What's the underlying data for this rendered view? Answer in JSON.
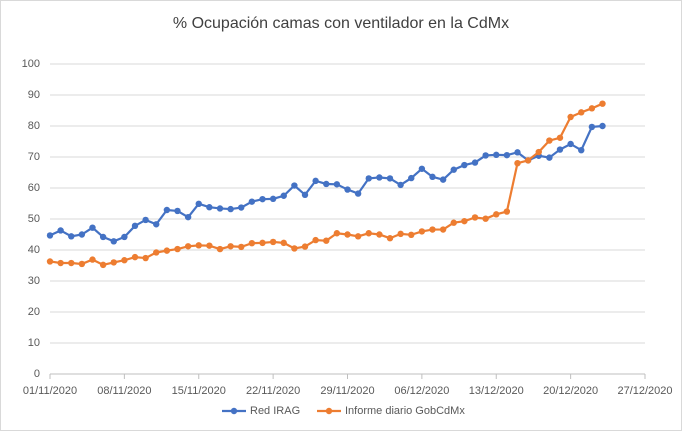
{
  "chart_data": {
    "type": "line",
    "title": "% Ocupación camas con ventilador en la CdMx",
    "x": [
      "01/11/2020",
      "02/11/2020",
      "03/11/2020",
      "04/11/2020",
      "05/11/2020",
      "06/11/2020",
      "07/11/2020",
      "08/11/2020",
      "09/11/2020",
      "10/11/2020",
      "11/11/2020",
      "12/11/2020",
      "13/11/2020",
      "14/11/2020",
      "15/11/2020",
      "16/11/2020",
      "17/11/2020",
      "18/11/2020",
      "19/11/2020",
      "20/11/2020",
      "21/11/2020",
      "22/11/2020",
      "23/11/2020",
      "24/11/2020",
      "25/11/2020",
      "26/11/2020",
      "27/11/2020",
      "28/11/2020",
      "29/11/2020",
      "30/11/2020",
      "01/12/2020",
      "02/12/2020",
      "03/12/2020",
      "04/12/2020",
      "05/12/2020",
      "06/12/2020",
      "07/12/2020",
      "08/12/2020",
      "09/12/2020",
      "10/12/2020",
      "11/12/2020",
      "12/12/2020",
      "13/12/2020",
      "14/12/2020",
      "15/12/2020",
      "16/12/2020",
      "17/12/2020",
      "18/12/2020",
      "19/12/2020",
      "20/12/2020",
      "21/12/2020",
      "22/12/2020",
      "23/12/2020"
    ],
    "series": [
      {
        "name": "Red IRAG",
        "color": "#4472c4",
        "values": [
          44.7,
          46.3,
          44.4,
          45.0,
          47.2,
          44.2,
          42.8,
          44.2,
          47.8,
          49.7,
          48.3,
          52.9,
          52.6,
          50.6,
          54.9,
          53.8,
          53.4,
          53.2,
          53.7,
          55.6,
          56.4,
          56.5,
          57.5,
          60.8,
          57.8,
          62.3,
          61.3,
          61.2,
          59.5,
          58.2,
          63.1,
          63.4,
          63.1,
          61.0,
          63.2,
          66.2,
          63.6,
          62.7,
          65.9,
          67.4,
          68.2,
          70.5,
          70.7,
          70.6,
          71.5,
          68.9,
          70.4,
          69.8,
          72.4,
          74.2,
          72.2,
          79.7,
          80.0
        ]
      },
      {
        "name": "Informe diario GobCdMx",
        "color": "#ed7d31",
        "values": [
          36.3,
          35.8,
          35.8,
          35.5,
          36.9,
          35.2,
          36.0,
          36.7,
          37.7,
          37.4,
          39.2,
          39.8,
          40.3,
          41.2,
          41.5,
          41.4,
          40.3,
          41.2,
          41.0,
          42.2,
          42.3,
          42.6,
          42.3,
          40.5,
          41.1,
          43.2,
          43.0,
          45.4,
          45.0,
          44.4,
          45.4,
          45.0,
          43.8,
          45.2,
          44.9,
          46.0,
          46.6,
          46.6,
          48.8,
          49.3,
          50.5,
          50.1,
          51.5,
          52.4,
          68.0,
          68.9,
          71.6,
          75.3,
          76.2,
          82.9,
          84.4,
          85.7,
          87.2
        ]
      }
    ],
    "xlim": [
      "01/11/2020",
      "27/12/2020"
    ],
    "xticks": [
      "01/11/2020",
      "08/11/2020",
      "15/11/2020",
      "22/11/2020",
      "29/11/2020",
      "06/12/2020",
      "13/12/2020",
      "20/12/2020",
      "27/12/2020"
    ],
    "ylim": [
      0,
      100
    ],
    "yticks": [
      0,
      10,
      20,
      30,
      40,
      50,
      60,
      70,
      80,
      90,
      100
    ],
    "grid": true,
    "legend": "bottom"
  }
}
